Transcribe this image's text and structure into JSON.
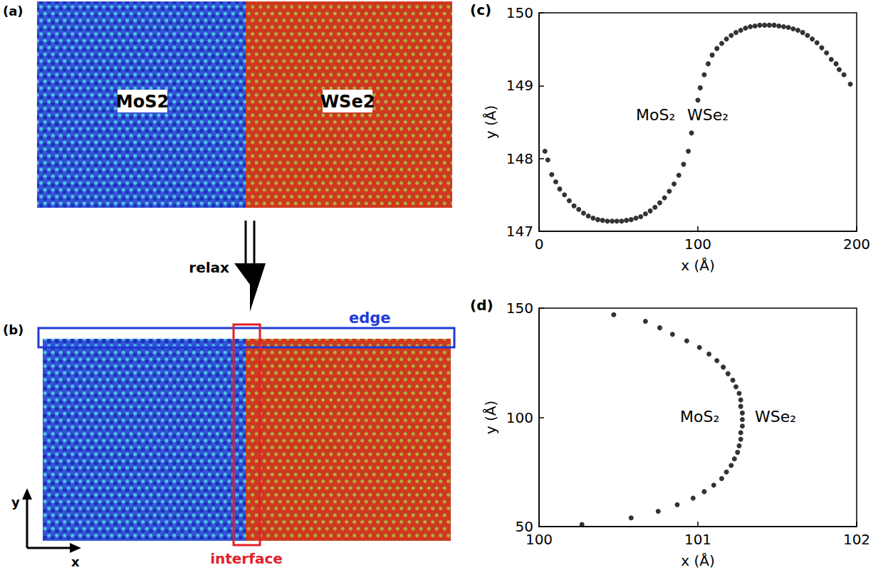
{
  "figure": {
    "a": {
      "panel_label": "(a)",
      "left_region": "MoS2",
      "right_region": "WSe2"
    },
    "arrow_label": "relax",
    "b": {
      "panel_label": "(b)",
      "edge_label": "edge",
      "interface_label": "interface",
      "x_axis_label": "x",
      "y_axis_label": "y"
    }
  },
  "chart_data": [
    {
      "panel_label": "(c)",
      "type": "scatter",
      "x_label": "x (Å)",
      "y_label": "y (Å)",
      "annotations": [
        "MoS₂",
        "WSe₂"
      ],
      "color": "#000000",
      "marker": "circle",
      "x": [
        3.7,
        5.5,
        8,
        10.5,
        13,
        16,
        19,
        22,
        25,
        28,
        31,
        34,
        37,
        40,
        43,
        46,
        49,
        52,
        55,
        58,
        61,
        64,
        67,
        70,
        73,
        76,
        79,
        82,
        85,
        88,
        91,
        94,
        96,
        100,
        101.5,
        104,
        106.5,
        109,
        112,
        115,
        118,
        121,
        124,
        127,
        130,
        133,
        136,
        139,
        142,
        145,
        148,
        151,
        154,
        157,
        160,
        163,
        166,
        169,
        172,
        175,
        178,
        181,
        184,
        187,
        189,
        192,
        196
      ],
      "values": [
        148.1,
        147.98,
        147.78,
        147.68,
        147.58,
        147.5,
        147.42,
        147.35,
        147.3,
        147.25,
        147.21,
        147.18,
        147.16,
        147.15,
        147.14,
        147.14,
        147.14,
        147.14,
        147.15,
        147.16,
        147.18,
        147.2,
        147.24,
        147.28,
        147.33,
        147.39,
        147.46,
        147.55,
        147.65,
        147.77,
        147.92,
        148.1,
        148.35,
        148.8,
        148.97,
        149.15,
        149.3,
        149.42,
        149.51,
        149.58,
        149.64,
        149.69,
        149.73,
        149.76,
        149.79,
        149.81,
        149.82,
        149.83,
        149.83,
        149.83,
        149.83,
        149.82,
        149.81,
        149.8,
        149.78,
        149.76,
        149.73,
        149.69,
        149.64,
        149.59,
        149.52,
        149.45,
        149.36,
        149.3,
        149.22,
        149.15,
        149.02
      ],
      "xlim": [
        0,
        200
      ],
      "xticks": [
        0,
        100,
        200
      ],
      "ylim": [
        147,
        150
      ],
      "yticks": [
        147,
        148,
        149,
        150
      ]
    },
    {
      "panel_label": "(d)",
      "type": "scatter",
      "x_label": "x (Å)",
      "y_label": "y (Å)",
      "annotations": [
        "MoS₂",
        "WSe₂"
      ],
      "color": "#000000",
      "marker": "circle",
      "x": [
        100.27,
        100.58,
        100.75,
        100.87,
        100.97,
        101.04,
        101.1,
        101.15,
        101.18,
        101.21,
        101.23,
        101.25,
        101.26,
        101.27,
        101.27,
        101.28,
        101.28,
        101.28,
        101.27,
        101.27,
        101.26,
        101.24,
        101.22,
        101.19,
        101.16,
        101.12,
        101.07,
        101.01,
        100.93,
        100.84,
        100.76,
        100.67,
        100.47
      ],
      "values": [
        51,
        54,
        57,
        60,
        63,
        66,
        69,
        72,
        75,
        78,
        81,
        84,
        87,
        90,
        93,
        96,
        99,
        102,
        105,
        108,
        111,
        114,
        117,
        120,
        123,
        126,
        129,
        132,
        135,
        138,
        141,
        144,
        147
      ],
      "xlim": [
        100,
        102
      ],
      "xticks": [
        100,
        101,
        102
      ],
      "ylim": [
        50,
        150
      ],
      "yticks": [
        50,
        100,
        150
      ]
    }
  ]
}
